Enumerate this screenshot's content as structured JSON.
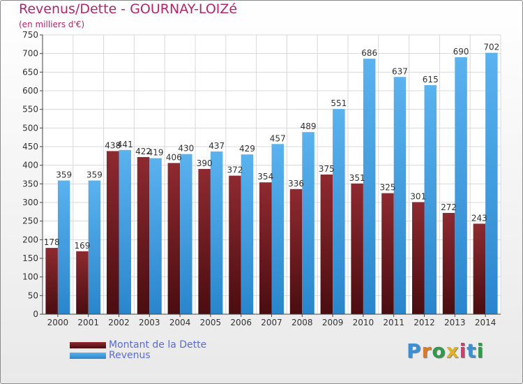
{
  "title": "Revenus/Dette - GOURNAY-LOIZé",
  "subtitle": "(en milliers d'€)",
  "logo_text": "Proxiti",
  "chart_data": {
    "type": "bar",
    "categories": [
      "2000",
      "2001",
      "2002",
      "2003",
      "2004",
      "2005",
      "2006",
      "2007",
      "2008",
      "2009",
      "2010",
      "2011",
      "2012",
      "2013",
      "2014"
    ],
    "series": [
      {
        "name": "Montant de la Dette",
        "color": "#7a1f24",
        "values": [
          178,
          169,
          438,
          422,
          406,
          390,
          372,
          354,
          336,
          375,
          351,
          325,
          301,
          272,
          243
        ]
      },
      {
        "name": "Revenus",
        "color": "#3f9ee0",
        "values": [
          359,
          359,
          441,
          419,
          430,
          437,
          429,
          457,
          489,
          551,
          686,
          637,
          615,
          690,
          702
        ]
      }
    ],
    "y_ticks": [
      0,
      50,
      100,
      150,
      200,
      250,
      300,
      350,
      400,
      450,
      500,
      550,
      600,
      650,
      700,
      750
    ],
    "ylim": [
      0,
      750
    ],
    "grid": true,
    "legend_position": "bottom-left"
  }
}
